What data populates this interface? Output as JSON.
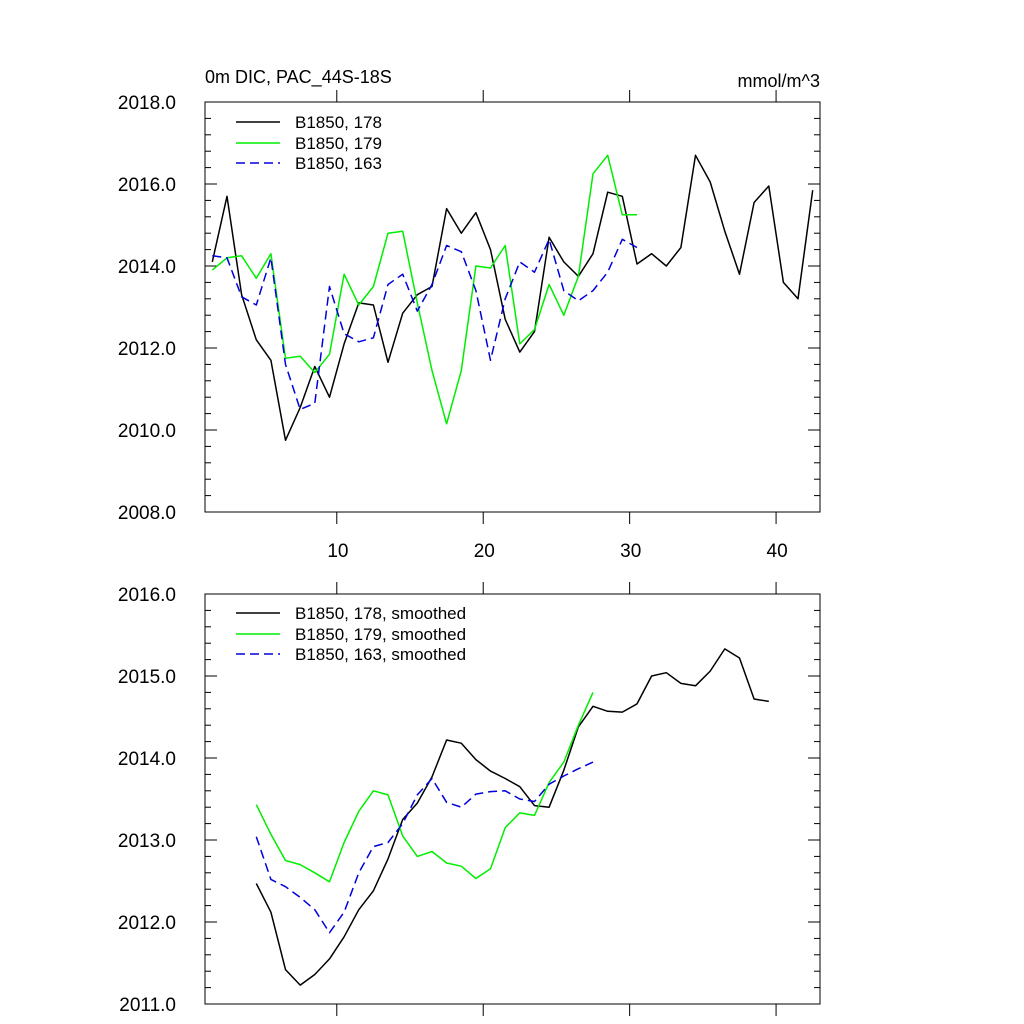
{
  "chart_data": [
    {
      "type": "line",
      "title": "0m DIC, PAC_44S-18S",
      "units": "mmol/m^3",
      "ylim": [
        2008.0,
        2018.0
      ],
      "xlim": [
        1,
        43
      ],
      "y_ticks": [
        2008.0,
        2010.0,
        2012.0,
        2014.0,
        2016.0,
        2018.0
      ],
      "y_tick_labels": [
        "2008.0",
        "2010.0",
        "2012.0",
        "2014.0",
        "2016.0",
        "2018.0"
      ],
      "x_ticks": [
        10,
        20,
        30,
        40
      ],
      "x_tick_labels": [
        "10",
        "20",
        "30",
        "40"
      ],
      "legend": "top-left",
      "series": [
        {
          "name": "B1850, 178",
          "color": "#000000",
          "dash": "solid",
          "x_start": 1.5,
          "values": [
            2014.1,
            2015.7,
            2013.3,
            2012.2,
            2011.7,
            2009.75,
            2010.55,
            2011.55,
            2010.8,
            2012.1,
            2013.1,
            2013.05,
            2011.65,
            2012.85,
            2013.3,
            2013.5,
            2015.4,
            2014.8,
            2015.3,
            2014.4,
            2012.7,
            2011.9,
            2012.4,
            2014.7,
            2014.1,
            2013.75,
            2014.3,
            2015.8,
            2015.7,
            2014.05,
            2014.3,
            2014.0,
            2014.45,
            2016.7,
            2016.05,
            2014.85,
            2013.8,
            2015.55,
            2015.95,
            2013.6,
            2013.2,
            2015.85
          ]
        },
        {
          "name": "B1850, 179",
          "color": "#00ee00",
          "dash": "solid",
          "x_start": 1.5,
          "values": [
            2013.9,
            2014.2,
            2014.25,
            2013.7,
            2014.3,
            2011.75,
            2011.8,
            2011.4,
            2011.85,
            2013.8,
            2013.05,
            2013.5,
            2014.8,
            2014.85,
            2013.1,
            2011.45,
            2010.15,
            2011.45,
            2014.0,
            2013.95,
            2014.5,
            2012.1,
            2012.45,
            2013.55,
            2012.8,
            2013.75,
            2016.25,
            2016.7,
            2015.25,
            2015.25
          ]
        },
        {
          "name": "B1850, 163",
          "color": "#0000dd",
          "dash": "dashed",
          "x_start": 1.5,
          "values": [
            2014.25,
            2014.2,
            2013.25,
            2013.05,
            2014.2,
            2011.6,
            2010.5,
            2010.65,
            2013.5,
            2012.35,
            2012.15,
            2012.25,
            2013.55,
            2013.8,
            2012.9,
            2013.55,
            2014.5,
            2014.35,
            2013.4,
            2011.7,
            2013.2,
            2014.1,
            2013.85,
            2014.65,
            2013.4,
            2013.15,
            2013.4,
            2013.85,
            2014.65,
            2014.45
          ]
        }
      ]
    },
    {
      "type": "line",
      "ylim": [
        2011.0,
        2016.0
      ],
      "xlim": [
        1,
        43
      ],
      "y_ticks": [
        2011.0,
        2012.0,
        2013.0,
        2014.0,
        2015.0,
        2016.0
      ],
      "y_tick_labels": [
        "2011.0",
        "2012.0",
        "2013.0",
        "2014.0",
        "2015.0",
        "2016.0"
      ],
      "x_ticks": [
        10,
        20,
        30,
        40
      ],
      "legend": "top-left",
      "series": [
        {
          "name": "B1850, 178, smoothed",
          "color": "#000000",
          "dash": "solid",
          "x_start": 4.5,
          "values": [
            2012.47,
            2012.12,
            2011.42,
            2011.23,
            2011.36,
            2011.55,
            2011.82,
            2012.15,
            2012.38,
            2012.77,
            2013.25,
            2013.45,
            2013.77,
            2014.22,
            2014.18,
            2013.98,
            2013.84,
            2013.75,
            2013.65,
            2013.42,
            2013.4,
            2013.85,
            2014.38,
            2014.63,
            2014.57,
            2014.56,
            2014.66,
            2015.0,
            2015.04,
            2014.91,
            2014.88,
            2015.06,
            2015.33,
            2015.22,
            2014.72,
            2014.69
          ]
        },
        {
          "name": "B1850, 179, smoothed",
          "color": "#00ee00",
          "dash": "solid",
          "x_start": 4.5,
          "values": [
            2013.43,
            2013.07,
            2012.75,
            2012.7,
            2012.6,
            2012.49,
            2012.97,
            2013.35,
            2013.6,
            2013.55,
            2013.05,
            2012.8,
            2012.86,
            2012.72,
            2012.68,
            2012.53,
            2012.65,
            2013.15,
            2013.33,
            2013.3,
            2013.7,
            2013.95,
            2014.4,
            2014.8
          ]
        },
        {
          "name": "B1850, 163, smoothed",
          "color": "#0000dd",
          "dash": "dashed",
          "x_start": 4.5,
          "values": [
            2013.04,
            2012.52,
            2012.43,
            2012.3,
            2012.15,
            2011.87,
            2012.12,
            2012.6,
            2012.92,
            2012.97,
            2013.2,
            2013.55,
            2013.75,
            2013.46,
            2013.4,
            2013.56,
            2013.59,
            2013.6,
            2013.5,
            2013.47,
            2013.68,
            2013.78,
            2013.87,
            2013.95
          ]
        }
      ]
    }
  ]
}
